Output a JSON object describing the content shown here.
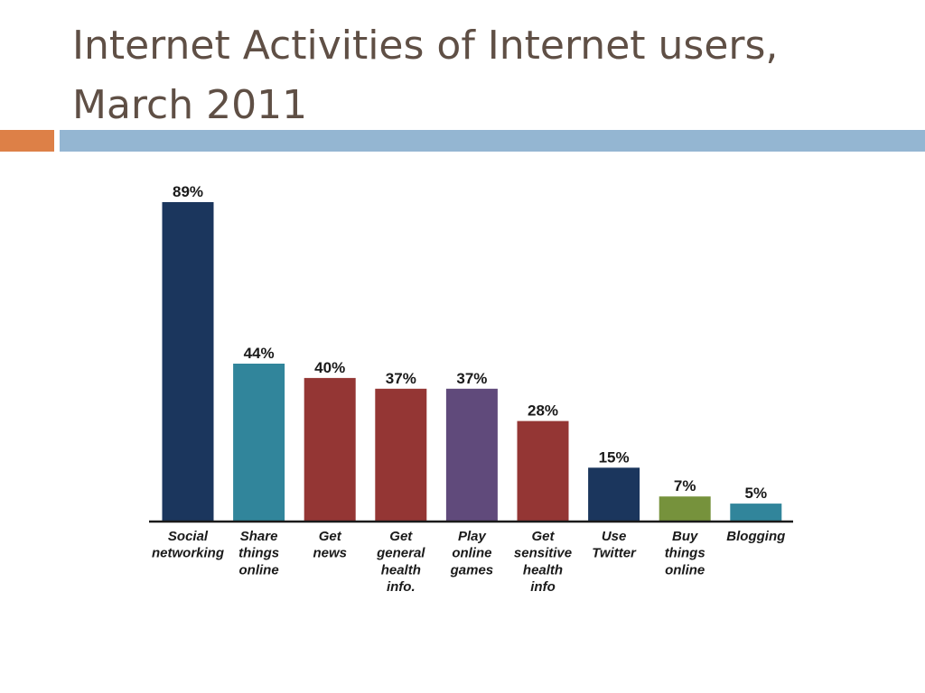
{
  "slide": {
    "title_lines": [
      "Internet Activities of Internet users,",
      "March 2011"
    ],
    "colors": {
      "title": "#5f4f45",
      "accent_orange": "#dd8047",
      "accent_blue": "#94b6d2"
    }
  },
  "chart_data": {
    "type": "bar",
    "title": "",
    "xlabel": "",
    "ylabel": "",
    "ylim": [
      0,
      100
    ],
    "grid": false,
    "categories": [
      [
        "Social",
        "networking"
      ],
      [
        "Share",
        "things",
        "online"
      ],
      [
        "Get",
        "news"
      ],
      [
        "Get",
        "general",
        "health",
        "info."
      ],
      [
        "Play",
        "online",
        "games"
      ],
      [
        "Get",
        "sensitive",
        "health",
        "info"
      ],
      [
        "Use",
        "Twitter"
      ],
      [
        "Buy",
        "things",
        "online"
      ],
      [
        "Blogging"
      ]
    ],
    "values": [
      89,
      44,
      40,
      37,
      37,
      28,
      15,
      7,
      5
    ],
    "value_labels": [
      "89%",
      "44%",
      "40%",
      "37%",
      "37%",
      "28%",
      "15%",
      "7%",
      "5%"
    ],
    "bar_colors": [
      "#1b365d",
      "#31859b",
      "#943634",
      "#943634",
      "#604a7b",
      "#943634",
      "#1b365d",
      "#76923c",
      "#31859b"
    ]
  }
}
